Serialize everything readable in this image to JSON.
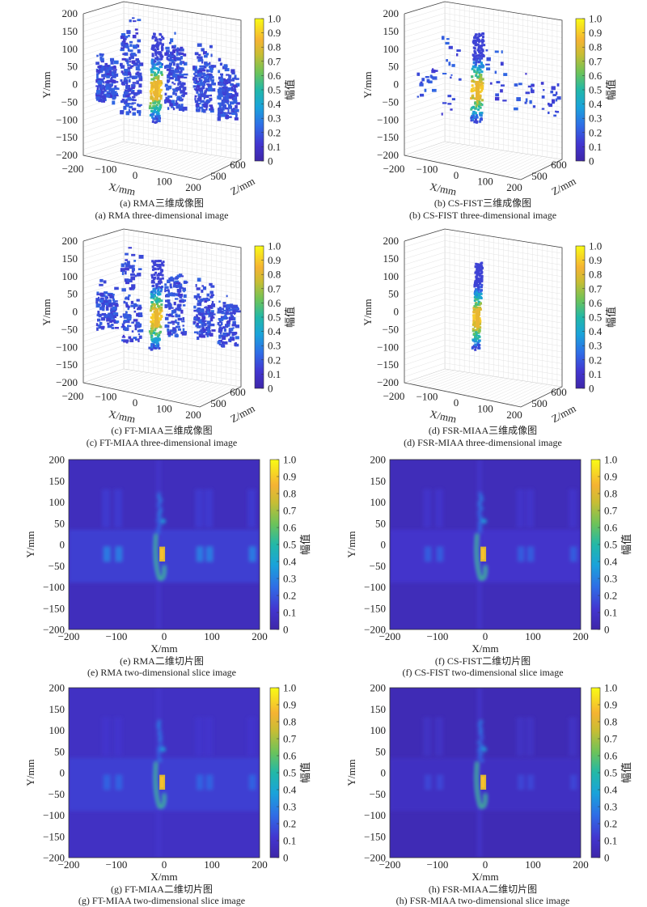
{
  "labels": {
    "x_axis": "X/mm",
    "y_axis": "Y/mm",
    "z_axis": "Z/mm",
    "colorbar": "幅值"
  },
  "ticks": {
    "y": [
      "200",
      "150",
      "100",
      "50",
      "0",
      "−50",
      "−100",
      "−150",
      "−200"
    ],
    "x3d": [
      "−200",
      "−100",
      "0",
      "100",
      "200"
    ],
    "z3d": [
      "500",
      "600"
    ],
    "x2d": [
      "−200",
      "−100",
      "0",
      "100",
      "200"
    ],
    "colorbar": [
      "1.0",
      "0.9",
      "0.8",
      "0.7",
      "0.6",
      "0.5",
      "0.4",
      "0.3",
      "0.2",
      "0.1",
      "0"
    ]
  },
  "colors": {
    "colormap": "parula",
    "background_2d": "#3a3aa6",
    "low": "#3e26a8",
    "high": "#f9fb15"
  },
  "panels": [
    {
      "caption_cn": "(a) RMA三维成像图",
      "caption_en": "(a) RMA three-dimensional image"
    },
    {
      "caption_cn": "(b) CS-FIST三维成像图",
      "caption_en": "(b) CS-FIST three-dimensional image"
    },
    {
      "caption_cn": "(c) FT-MIAA三维成像图",
      "caption_en": "(c) FT-MIAA three-dimensional image"
    },
    {
      "caption_cn": "(d) FSR-MIAA三维成像图",
      "caption_en": "(d) FSR-MIAA three-dimensional image"
    },
    {
      "caption_cn": "(e) RMA二维切片图",
      "caption_en": "(e) RMA two-dimensional slice image"
    },
    {
      "caption_cn": "(f) CS-FIST二维切片图",
      "caption_en": "(f) CS-FIST two-dimensional slice image"
    },
    {
      "caption_cn": "(g) FT-MIAA二维切片图",
      "caption_en": "(g) FT-MIAA two-dimensional slice image"
    },
    {
      "caption_cn": "(h) FSR-MIAA二维切片图",
      "caption_en": "(h) FSR-MIAA two-dimensional slice image"
    }
  ],
  "chart_data": [
    {
      "type": "scatter",
      "view": "3d",
      "method": "RMA",
      "xlim": [
        -200,
        200
      ],
      "ylim": [
        -200,
        200
      ],
      "zlim": [
        450,
        650
      ],
      "clim": [
        0,
        1
      ],
      "xlabel": "X/mm",
      "ylabel": "Y/mm",
      "zlabel": "Z/mm",
      "colorbar_label": "幅值",
      "grid": true,
      "peak": {
        "x": -10,
        "y": -20,
        "value": 1.0
      }
    },
    {
      "type": "scatter",
      "view": "3d",
      "method": "CS-FIST",
      "xlim": [
        -200,
        200
      ],
      "ylim": [
        -200,
        200
      ],
      "zlim": [
        450,
        650
      ],
      "clim": [
        0,
        1
      ],
      "xlabel": "X/mm",
      "ylabel": "Y/mm",
      "zlabel": "Z/mm",
      "colorbar_label": "幅值",
      "grid": true,
      "peak": {
        "x": -10,
        "y": -20,
        "value": 1.0
      }
    },
    {
      "type": "scatter",
      "view": "3d",
      "method": "FT-MIAA",
      "xlim": [
        -200,
        200
      ],
      "ylim": [
        -200,
        200
      ],
      "zlim": [
        450,
        650
      ],
      "clim": [
        0,
        1
      ],
      "xlabel": "X/mm",
      "ylabel": "Y/mm",
      "zlabel": "Z/mm",
      "colorbar_label": "幅值",
      "grid": true,
      "peak": {
        "x": -10,
        "y": -20,
        "value": 1.0
      }
    },
    {
      "type": "scatter",
      "view": "3d",
      "method": "FSR-MIAA",
      "xlim": [
        -200,
        200
      ],
      "ylim": [
        -200,
        200
      ],
      "zlim": [
        450,
        650
      ],
      "clim": [
        0,
        1
      ],
      "xlabel": "X/mm",
      "ylabel": "Y/mm",
      "zlabel": "Z/mm",
      "colorbar_label": "幅值",
      "grid": true,
      "peak": {
        "x": -10,
        "y": -20,
        "value": 1.0
      }
    },
    {
      "type": "heatmap",
      "method": "RMA",
      "xlim": [
        -200,
        200
      ],
      "ylim": [
        -200,
        200
      ],
      "clim": [
        0,
        1
      ],
      "xlabel": "X/mm",
      "ylabel": "Y/mm",
      "colorbar_label": "幅值",
      "peak": {
        "x": -8,
        "y": -20,
        "value": 1.0
      }
    },
    {
      "type": "heatmap",
      "method": "CS-FIST",
      "xlim": [
        -200,
        200
      ],
      "ylim": [
        -200,
        200
      ],
      "clim": [
        0,
        1
      ],
      "xlabel": "X/mm",
      "ylabel": "Y/mm",
      "colorbar_label": "幅值",
      "peak": {
        "x": -8,
        "y": -20,
        "value": 1.0
      }
    },
    {
      "type": "heatmap",
      "method": "FT-MIAA",
      "xlim": [
        -200,
        200
      ],
      "ylim": [
        -200,
        200
      ],
      "clim": [
        0,
        1
      ],
      "xlabel": "X/mm",
      "ylabel": "Y/mm",
      "colorbar_label": "幅值",
      "peak": {
        "x": -8,
        "y": -20,
        "value": 1.0
      }
    },
    {
      "type": "heatmap",
      "method": "FSR-MIAA",
      "xlim": [
        -200,
        200
      ],
      "ylim": [
        -200,
        200
      ],
      "clim": [
        0,
        1
      ],
      "xlabel": "X/mm",
      "ylabel": "Y/mm",
      "colorbar_label": "幅值",
      "peak": {
        "x": -8,
        "y": -20,
        "value": 1.0
      }
    }
  ]
}
